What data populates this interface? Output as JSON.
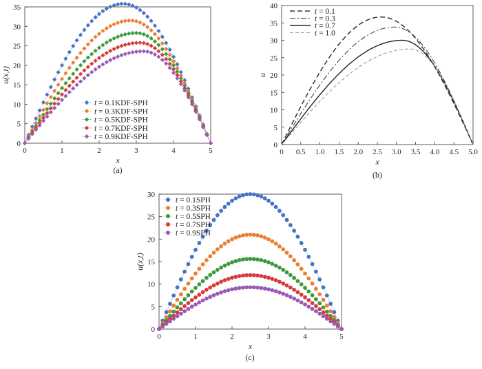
{
  "chart_data": [
    {
      "type": "scatter",
      "caption": "(a)",
      "xlabel": "x",
      "ylabel": "u(x,t)",
      "xlim": [
        0,
        5
      ],
      "ylim": [
        0,
        35
      ],
      "xticks": [
        "0",
        "1",
        "2",
        "3",
        "4",
        "5"
      ],
      "yticks": [
        "0",
        "5",
        "10",
        "15",
        "20",
        "25",
        "30",
        "35"
      ],
      "grid": false,
      "legend_position": "bottom-center",
      "marker": "diamond",
      "x_start": 0,
      "x_step": 0.1,
      "n_points": 51,
      "series": [
        {
          "name": "t = 0.1KDF-SPH",
          "t_label": "t",
          "label_rest": " = 0.1KDF-SPH",
          "color": "#4472c4",
          "peak_x": 2.65,
          "peak_y": 35.8
        },
        {
          "name": "t = 0.3KDF-SPH",
          "t_label": "t",
          "label_rest": " = 0.3KDF-SPH",
          "color": "#ed7d31",
          "peak_x": 2.85,
          "peak_y": 31.5
        },
        {
          "name": "t = 0.5KDF-SPH",
          "t_label": "t",
          "label_rest": " = 0.5KDF-SPH",
          "color": "#3c9a3c",
          "peak_x": 3.0,
          "peak_y": 28.3
        },
        {
          "name": "t = 0.7KDF-SPH",
          "t_label": "t",
          "label_rest": " = 0.7KDF-SPH",
          "color": "#d63a3a",
          "peak_x": 3.1,
          "peak_y": 25.8
        },
        {
          "name": "t = 0.9KDF-SPH",
          "t_label": "t",
          "label_rest": " = 0.9KDF-SPH",
          "color": "#9b59b6",
          "peak_x": 3.2,
          "peak_y": 23.6
        }
      ]
    },
    {
      "type": "line",
      "caption": "(b)",
      "xlabel": "x",
      "ylabel": "u",
      "xlim": [
        0,
        5
      ],
      "ylim": [
        0,
        40
      ],
      "xticks": [
        "0",
        "0.5",
        "1.0",
        "1.5",
        "2.0",
        "2.5",
        "3.0",
        "3.5",
        "4.0",
        "4.5",
        "5.0"
      ],
      "yticks": [
        "0",
        "5",
        "10",
        "15",
        "20",
        "25",
        "30",
        "35",
        "40"
      ],
      "grid": false,
      "legend_position": "top-left",
      "x_start": 0,
      "x_step": 0.05,
      "n_points": 101,
      "series": [
        {
          "name": "t = 0.1",
          "t_label": "t",
          "label_rest": " = 0.1",
          "color": "#333333",
          "dash": "7,4",
          "width": 1.5,
          "peak_x": 2.6,
          "peak_y": 36.7
        },
        {
          "name": "t = 0.3",
          "t_label": "t",
          "label_rest": " = 0.3",
          "color": "#444444",
          "dash": "8,3,2,3",
          "width": 1.1,
          "peak_x": 2.95,
          "peak_y": 33.8
        },
        {
          "name": "t = 0.7",
          "t_label": "t",
          "label_rest": " = 0.7",
          "color": "#222222",
          "dash": "",
          "width": 1.4,
          "peak_x": 3.15,
          "peak_y": 30.0
        },
        {
          "name": "t = 1.0",
          "t_label": "t",
          "label_rest": " = 1.0",
          "color": "#999999",
          "dash": "5,3",
          "width": 1.1,
          "peak_x": 3.35,
          "peak_y": 27.5
        }
      ]
    },
    {
      "type": "scatter",
      "caption": "(c)",
      "xlabel": "x",
      "ylabel": "u(x,t)",
      "xlim": [
        0,
        5
      ],
      "ylim": [
        0,
        30
      ],
      "xticks": [
        "0",
        "1",
        "2",
        "3",
        "4",
        "5"
      ],
      "yticks": [
        "0",
        "5",
        "10",
        "15",
        "20",
        "25",
        "30"
      ],
      "grid": false,
      "legend_position": "top-left",
      "marker": "circle",
      "x_start": 0,
      "x_step": 0.1,
      "n_points": 51,
      "series": [
        {
          "name": "t = 0.1SPH",
          "t_label": "t",
          "label_rest": " = 0.1SPH",
          "color": "#4472c4",
          "peak_x": 2.5,
          "peak_y": 30.0
        },
        {
          "name": "t = 0.3SPH",
          "t_label": "t",
          "label_rest": " = 0.3SPH",
          "color": "#ed7d31",
          "peak_x": 2.5,
          "peak_y": 21.0
        },
        {
          "name": "t = 0.5SPH",
          "t_label": "t",
          "label_rest": " = 0.5SPH",
          "color": "#3c9a3c",
          "peak_x": 2.5,
          "peak_y": 15.6
        },
        {
          "name": "t = 0.7SPH",
          "t_label": "t",
          "label_rest": " = 0.7SPH",
          "color": "#d63a3a",
          "peak_x": 2.5,
          "peak_y": 12.0
        },
        {
          "name": "t = 0.9SPH",
          "t_label": "t",
          "label_rest": " = 0.9SPH",
          "color": "#9b59b6",
          "peak_x": 2.5,
          "peak_y": 9.3
        }
      ]
    }
  ]
}
